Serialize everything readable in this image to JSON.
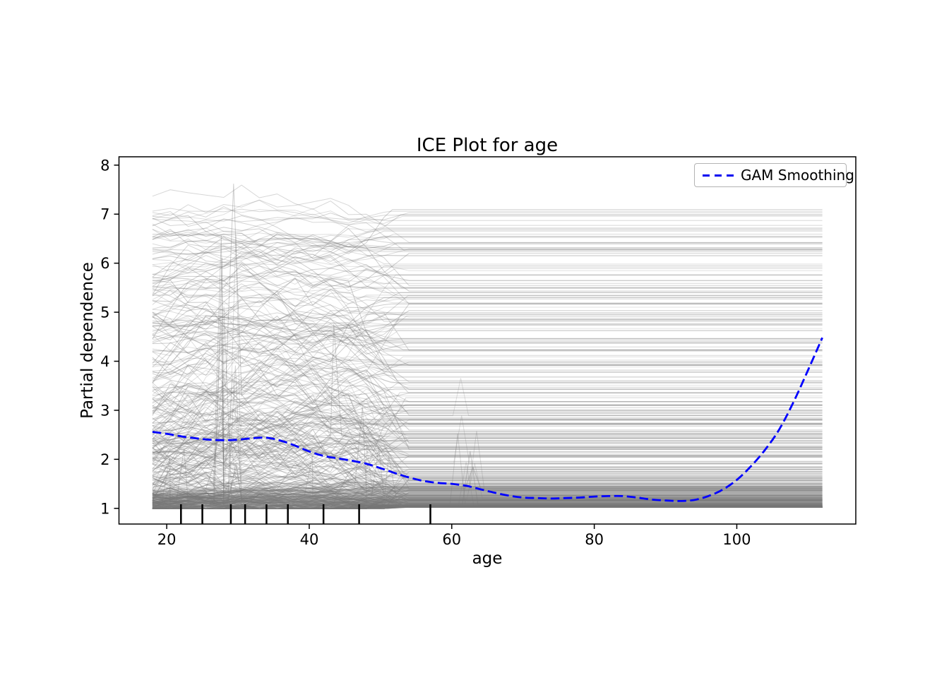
{
  "figure": {
    "background": "#ffffff"
  },
  "chart_data": {
    "type": "line",
    "title": "ICE Plot for age",
    "xlabel": "age",
    "ylabel": "Partial dependence",
    "xlim": [
      13.3,
      116.7
    ],
    "ylim": [
      0.68,
      8.17
    ],
    "x_ticks": [
      20,
      40,
      60,
      80,
      100
    ],
    "y_ticks": [
      1,
      2,
      3,
      4,
      5,
      6,
      7,
      8
    ],
    "grid": false,
    "legend": {
      "label": "GAM Smoothing",
      "position": "upper right",
      "line_color": "#0000ff",
      "line_style": "dashed"
    },
    "rug_ages": [
      22,
      25,
      29,
      31,
      34,
      37,
      42,
      47,
      57
    ],
    "rug_color": "#000000",
    "series": [
      {
        "name": "GAM Smoothing",
        "type": "line",
        "style": "dashed",
        "color": "#0000ff",
        "width": 2.8,
        "x": [
          18,
          20,
          22,
          24,
          26,
          28,
          30,
          32,
          34,
          36,
          38,
          40,
          42,
          44,
          46,
          48,
          50,
          52,
          54,
          56,
          58,
          60,
          62,
          64,
          66,
          68,
          70,
          72,
          74,
          76,
          78,
          80,
          82,
          84,
          86,
          88,
          90,
          92,
          94,
          96,
          98,
          100,
          102,
          104,
          106,
          108,
          110,
          112
        ],
        "y": [
          2.56,
          2.52,
          2.47,
          2.43,
          2.4,
          2.39,
          2.4,
          2.43,
          2.44,
          2.38,
          2.28,
          2.16,
          2.07,
          2.02,
          1.97,
          1.91,
          1.82,
          1.72,
          1.63,
          1.56,
          1.52,
          1.5,
          1.46,
          1.39,
          1.32,
          1.26,
          1.22,
          1.21,
          1.2,
          1.21,
          1.22,
          1.24,
          1.25,
          1.25,
          1.22,
          1.18,
          1.16,
          1.15,
          1.17,
          1.25,
          1.38,
          1.58,
          1.86,
          2.2,
          2.62,
          3.18,
          3.82,
          4.48
        ]
      },
      {
        "name": "ICE curves",
        "type": "line-collection",
        "color": "#787878",
        "opacity_range": [
          0.2,
          0.38
        ],
        "count": 520,
        "seed": 7,
        "x_range": [
          18,
          112
        ],
        "flat_value_min": 1.02,
        "flat_value_spread": 6.1,
        "flat_value_power": 3.2,
        "y_clamp": [
          0.995,
          7.62
        ],
        "flatten_age_range": [
          47,
          56
        ],
        "wiggle_anchor_step": 2.5,
        "hump_center_age": 28,
        "spike_fraction": 0.105,
        "spike_clusters": [
          {
            "age": 28.7,
            "jitter": 1.2,
            "max_height": 5.4,
            "weight": 0.45
          },
          {
            "age": 49.3,
            "jitter": 2.0,
            "max_height": 3.1,
            "weight": 0.2
          },
          {
            "age": 62.0,
            "jitter": 1.5,
            "max_height": 1.6,
            "weight": 0.17
          },
          {
            "age": 42.0,
            "jitter": 2.0,
            "max_height": 2.3,
            "weight": 0.1
          },
          {
            "age": 21.5,
            "jitter": 1.4,
            "max_height": 1.3,
            "weight": 0.08
          }
        ],
        "description": "Hundreds of individual conditional expectation curves: dense/dark near partial dependence 1-2, progressively sparser up to ~7.6; wiggly between ages 18-52 with a hump near age 28 and step-down cliffs near age 50, then perfectly horizontal from ~age 52 to 112."
      }
    ]
  }
}
